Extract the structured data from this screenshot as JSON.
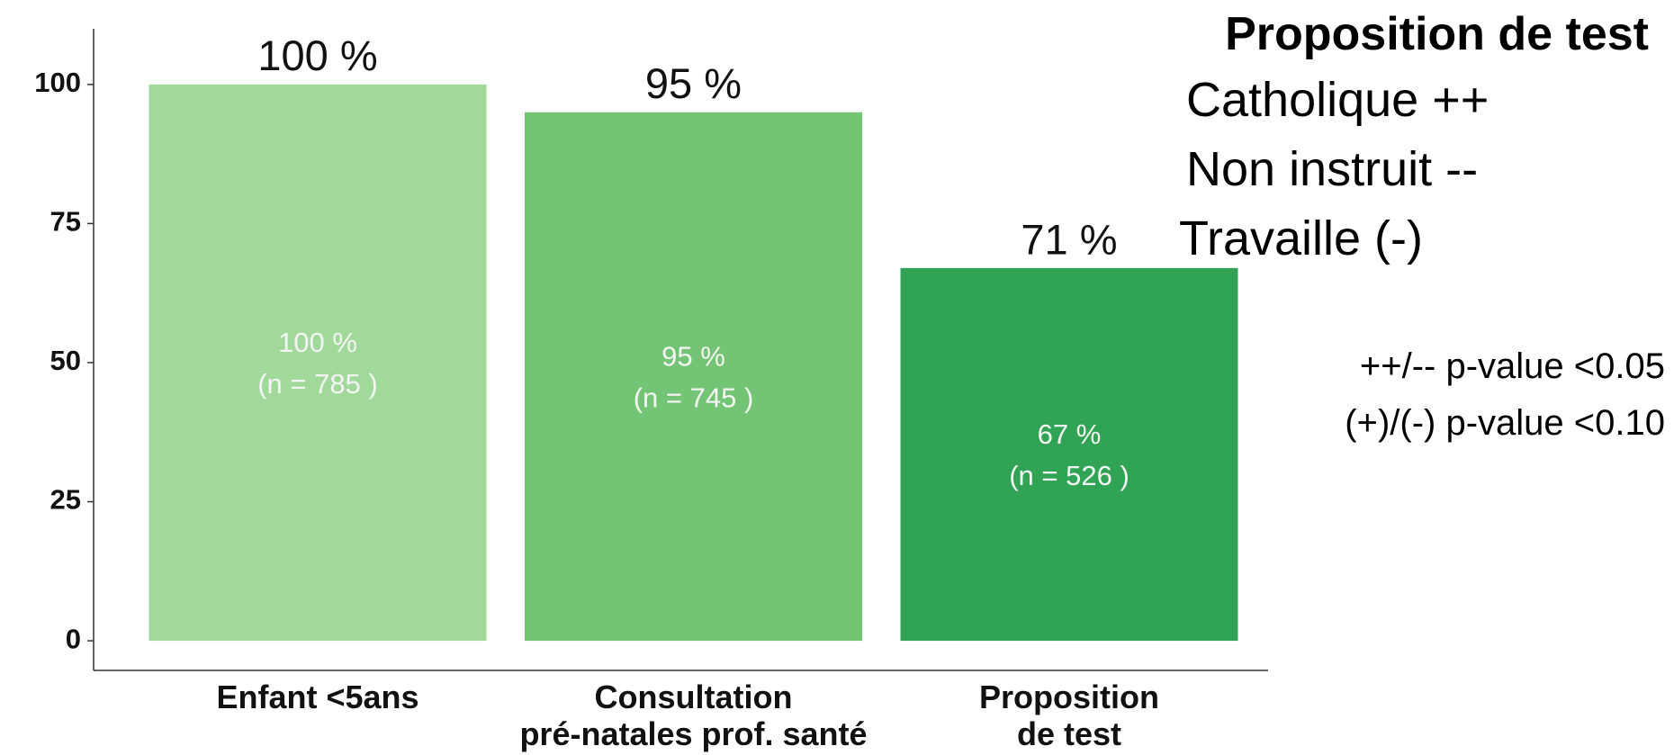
{
  "chart_data": {
    "type": "bar",
    "title": "Proposition de test",
    "categories": [
      "Enfant <5ans",
      "Consultation\npré-natales prof. santé",
      "Proposition\nde test"
    ],
    "values": [
      100,
      95,
      67
    ],
    "value_labels": [
      "100 %",
      "95 %",
      "67 %"
    ],
    "n_labels": [
      "(n = 785 )",
      "(n = 745 )",
      "(n = 526 )"
    ],
    "annotations": [
      "100 %",
      "95 %",
      "71 %"
    ],
    "colors": [
      "#a1d99b",
      "#74c476",
      "#31a354"
    ],
    "notes": [
      "Catholique ++",
      "Non instruit --",
      "Travaille (-)"
    ],
    "footnotes": [
      "++/-- p-value <0.05",
      "(+)/(-) p-value <0.10"
    ],
    "ylim": [
      -5,
      110
    ],
    "yticks": [
      0,
      25,
      50,
      75,
      100
    ],
    "grid": false
  }
}
